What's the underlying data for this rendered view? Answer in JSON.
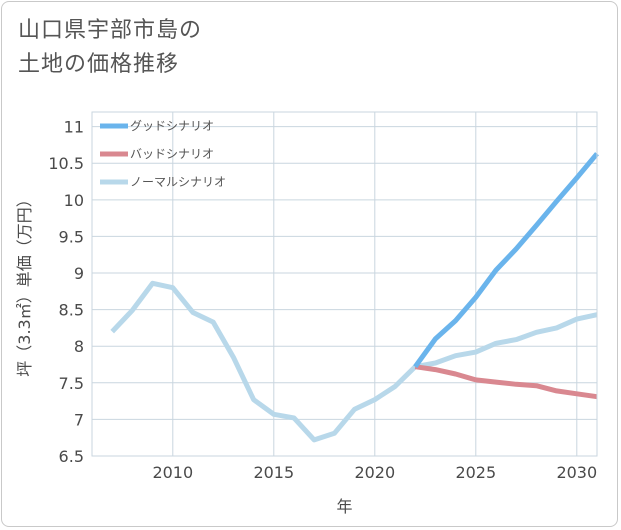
{
  "page_title": "山口県宇部市島の\n土地の価格推移",
  "chart_data": {
    "type": "line",
    "title": "山口県宇部市島の土地の価格推移",
    "xlabel": "年",
    "ylabel": "坪（3.3㎡）単価（万円）",
    "xlim": [
      2006,
      2031
    ],
    "ylim": [
      6.5,
      11.2
    ],
    "x_ticks": [
      "2010",
      "2015",
      "2020",
      "2025",
      "2030"
    ],
    "y_ticks": [
      "6.5",
      "7",
      "7.5",
      "8",
      "8.5",
      "9",
      "9.5",
      "10",
      "10.5",
      "11"
    ],
    "grid": true,
    "legend_position": "top-left",
    "series": [
      {
        "name": "グッドシナリオ",
        "color": "#6ab4ec",
        "x": [
          2022,
          2023,
          2024,
          2025,
          2026,
          2027,
          2028,
          2029,
          2030,
          2031
        ],
        "y": [
          7.72,
          8.1,
          8.35,
          8.67,
          9.04,
          9.33,
          9.65,
          9.98,
          10.3,
          10.63
        ]
      },
      {
        "name": "バッドシナリオ",
        "color": "#d98890",
        "x": [
          2022,
          2023,
          2024,
          2025,
          2026,
          2027,
          2028,
          2029,
          2030,
          2031
        ],
        "y": [
          7.72,
          7.68,
          7.62,
          7.54,
          7.51,
          7.48,
          7.46,
          7.39,
          7.35,
          7.31
        ]
      },
      {
        "name": "ノーマルシナリオ",
        "color": "#b8d8ea",
        "x": [
          2007,
          2008,
          2009,
          2010,
          2011,
          2012,
          2013,
          2014,
          2015,
          2016,
          2017,
          2018,
          2019,
          2020,
          2021,
          2022,
          2023,
          2024,
          2025,
          2026,
          2027,
          2028,
          2029,
          2030,
          2031
        ],
        "y": [
          8.2,
          8.49,
          8.86,
          8.8,
          8.46,
          8.33,
          7.85,
          7.27,
          7.07,
          7.02,
          6.72,
          6.81,
          7.14,
          7.27,
          7.45,
          7.72,
          7.77,
          7.87,
          7.92,
          8.04,
          8.09,
          8.19,
          8.25,
          8.37,
          8.43
        ]
      }
    ]
  }
}
